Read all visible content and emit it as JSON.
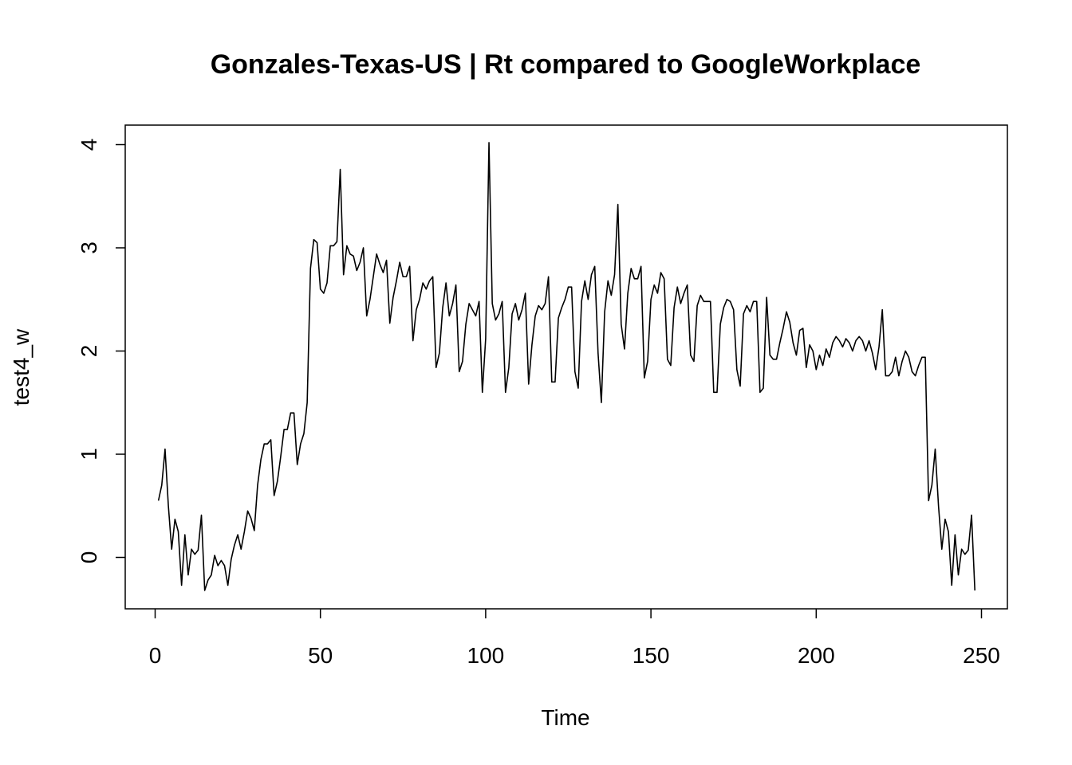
{
  "chart_data": {
    "type": "line",
    "title": "Gonzales-Texas-US | Rt compared to GoogleWorkplace",
    "xlabel": "Time",
    "ylabel": "test4_w",
    "xlim": [
      0,
      250
    ],
    "ylim": [
      -0.5,
      4.2
    ],
    "xticks": [
      0,
      50,
      100,
      150,
      200,
      250
    ],
    "yticks": [
      0,
      1,
      2,
      3,
      4
    ],
    "grid": false,
    "line_color": "#000000",
    "series": [
      {
        "x": [
          1,
          2,
          3,
          4,
          5,
          6,
          7,
          8,
          9,
          10,
          11,
          12,
          13,
          14,
          15,
          16,
          17,
          18,
          19,
          20,
          21,
          22,
          23,
          24,
          25,
          26,
          27,
          28,
          29,
          30,
          31,
          32,
          33,
          34,
          35,
          36,
          37,
          38,
          39,
          40,
          41,
          42,
          43,
          44,
          45,
          46,
          47,
          48,
          49,
          50,
          51,
          52,
          53,
          54,
          55,
          56,
          57,
          58,
          59,
          60,
          61,
          62,
          63,
          64,
          65,
          66,
          67,
          68,
          69,
          70,
          71,
          72,
          73,
          74,
          75,
          76,
          77,
          78,
          79,
          80,
          81,
          82,
          83,
          84,
          85,
          86,
          87,
          88,
          89,
          90,
          91,
          92,
          93,
          94,
          95,
          96,
          97,
          98,
          99,
          100,
          101,
          102,
          103,
          104,
          105,
          106,
          107,
          108,
          109,
          110,
          111,
          112,
          113,
          114,
          115,
          116,
          117,
          118,
          119,
          120,
          121,
          122,
          123,
          124,
          125,
          126,
          127,
          128,
          129,
          130,
          131,
          132,
          133,
          134,
          135,
          136,
          137,
          138,
          139,
          140,
          141,
          142,
          143,
          144,
          145,
          146,
          147,
          148,
          149,
          150,
          151,
          152,
          153,
          154,
          155,
          156,
          157,
          158,
          159,
          160,
          161,
          162,
          163,
          164,
          165,
          166,
          167,
          168,
          169,
          170,
          171,
          172,
          173,
          174,
          175,
          176,
          177,
          178,
          179,
          180,
          181,
          182,
          183,
          184,
          185,
          186,
          187,
          188,
          189,
          190,
          191,
          192,
          193,
          194,
          195,
          196,
          197,
          198,
          199,
          200,
          201,
          202,
          203,
          204,
          205,
          206,
          207,
          208,
          209,
          210,
          211,
          212,
          213,
          214,
          215,
          216,
          217,
          218,
          219,
          220,
          221,
          222,
          223,
          224,
          225,
          226,
          227,
          228,
          229,
          230,
          231,
          232,
          233,
          234,
          235,
          236,
          237,
          238,
          239,
          240,
          241,
          242,
          243,
          244,
          245,
          246,
          247,
          248
        ],
        "values": [
          0.55,
          0.7,
          1.05,
          0.5,
          0.08,
          0.37,
          0.25,
          -0.27,
          0.22,
          -0.17,
          0.08,
          0.03,
          0.07,
          0.41,
          -0.32,
          -0.22,
          -0.17,
          0.02,
          -0.08,
          -0.03,
          -0.08,
          -0.27,
          -0.02,
          0.12,
          0.22,
          0.08,
          0.25,
          0.45,
          0.38,
          0.26,
          0.7,
          0.95,
          1.1,
          1.1,
          1.14,
          0.6,
          0.74,
          0.98,
          1.24,
          1.24,
          1.4,
          1.4,
          0.9,
          1.1,
          1.2,
          1.5,
          2.8,
          3.08,
          3.05,
          2.6,
          2.56,
          2.66,
          3.02,
          3.02,
          3.06,
          3.76,
          2.74,
          3.02,
          2.94,
          2.92,
          2.78,
          2.86,
          3.0,
          2.34,
          2.5,
          2.72,
          2.94,
          2.84,
          2.76,
          2.88,
          2.27,
          2.52,
          2.68,
          2.86,
          2.72,
          2.72,
          2.82,
          2.1,
          2.4,
          2.5,
          2.66,
          2.6,
          2.68,
          2.72,
          1.84,
          1.98,
          2.42,
          2.66,
          2.34,
          2.46,
          2.64,
          1.8,
          1.9,
          2.26,
          2.46,
          2.4,
          2.34,
          2.48,
          1.6,
          2.12,
          4.02,
          2.46,
          2.3,
          2.36,
          2.48,
          1.6,
          1.84,
          2.36,
          2.46,
          2.3,
          2.4,
          2.56,
          1.68,
          2.06,
          2.34,
          2.44,
          2.4,
          2.46,
          2.72,
          1.7,
          1.7,
          2.32,
          2.42,
          2.5,
          2.62,
          2.62,
          1.8,
          1.64,
          2.48,
          2.68,
          2.5,
          2.74,
          2.82,
          1.98,
          1.5,
          2.38,
          2.68,
          2.54,
          2.74,
          3.42,
          2.26,
          2.02,
          2.56,
          2.8,
          2.7,
          2.7,
          2.82,
          1.74,
          1.9,
          2.5,
          2.64,
          2.56,
          2.76,
          2.7,
          1.92,
          1.86,
          2.42,
          2.62,
          2.46,
          2.56,
          2.64,
          1.96,
          1.9,
          2.44,
          2.54,
          2.48,
          2.48,
          2.48,
          1.6,
          1.6,
          2.26,
          2.42,
          2.5,
          2.48,
          2.4,
          1.82,
          1.66,
          2.36,
          2.44,
          2.38,
          2.48,
          2.48,
          1.6,
          1.64,
          2.52,
          1.96,
          1.92,
          1.92,
          2.08,
          2.22,
          2.38,
          2.28,
          2.08,
          1.96,
          2.2,
          2.22,
          1.84,
          2.06,
          2.0,
          1.82,
          1.96,
          1.86,
          2.02,
          1.94,
          2.08,
          2.14,
          2.1,
          2.04,
          2.12,
          2.08,
          2.0,
          2.1,
          2.14,
          2.1,
          2.0,
          2.1,
          1.98,
          1.82,
          2.04,
          2.4,
          1.76,
          1.76,
          1.8,
          1.94,
          1.76,
          1.9,
          2.0,
          1.94,
          1.8,
          1.76,
          1.86,
          1.94,
          1.94,
          0.55,
          0.7,
          1.05,
          0.5,
          0.08,
          0.37,
          0.25,
          -0.27,
          0.22,
          -0.17,
          0.08,
          0.03,
          0.07,
          0.41,
          -0.32
        ]
      }
    ]
  }
}
